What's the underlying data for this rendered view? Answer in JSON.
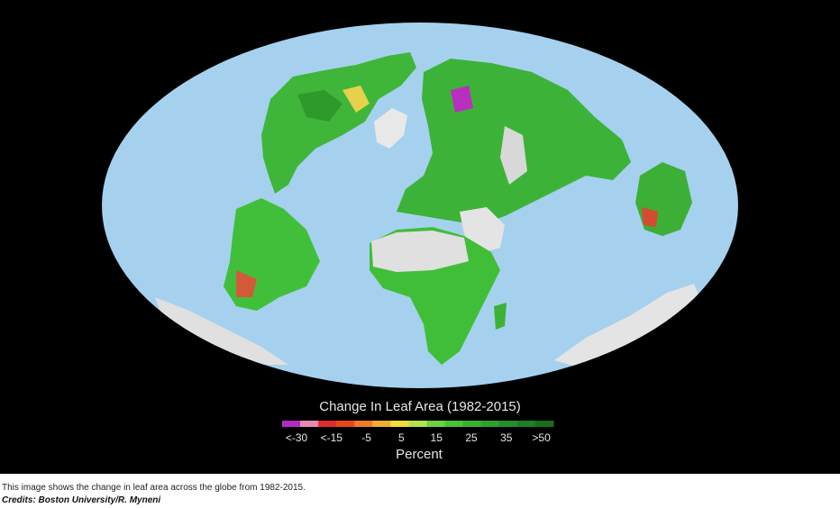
{
  "map": {
    "legend": {
      "title": "Change In Leaf Area (1982-2015)",
      "colors": [
        "#b02cc0",
        "#e48ab0",
        "#e02c2c",
        "#e8461e",
        "#f07a2a",
        "#f0ac2c",
        "#f0dc3a",
        "#b4e050",
        "#6cd040",
        "#48c236",
        "#38b030",
        "#2fa02c",
        "#268e28",
        "#1f7e22",
        "#186c1c"
      ],
      "labels": [
        "<-30",
        "<-15",
        "-5",
        "5",
        "15",
        "25",
        "35",
        ">50"
      ],
      "unit": "Percent"
    },
    "caption": "This image shows the change in leaf area across the globe from 1982-2015.",
    "credits": "Credits: Boston University/R. Myneni"
  }
}
